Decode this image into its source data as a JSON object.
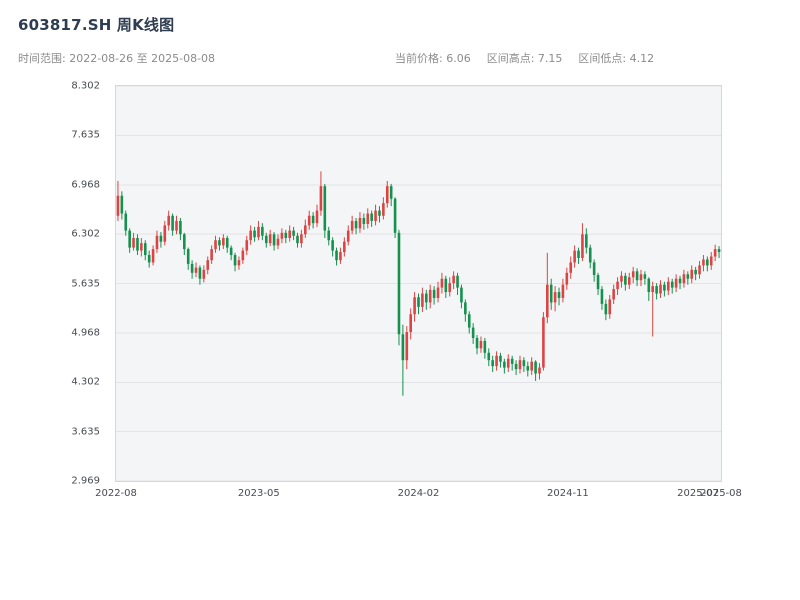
{
  "header": {
    "title": "603817.SH 周K线图",
    "time_range": "时间范围: 2022-08-26 至 2025-08-08",
    "stats": {
      "current_price": "当前价格: 6.06",
      "range_high": "区间高点: 7.15",
      "range_low": "区间低点: 4.12"
    }
  },
  "chart_data": {
    "type": "candlestick",
    "title": "603817.SH 周K线图",
    "symbol": "603817.SH",
    "period": "weekly",
    "date_range": [
      "2022-08-26",
      "2025-08-08"
    ],
    "current_price": 6.06,
    "range_high": 7.15,
    "range_low": 4.12,
    "ylim": [
      2.969,
      8.302
    ],
    "y_ticks": [
      8.302,
      7.635,
      6.968,
      6.302,
      5.635,
      4.968,
      4.302,
      3.635,
      2.969
    ],
    "x_ticks": [
      {
        "label": "2022-08",
        "pos": 0.0
      },
      {
        "label": "2023-05",
        "pos": 0.236
      },
      {
        "label": "2024-02",
        "pos": 0.5
      },
      {
        "label": "2024-11",
        "pos": 0.747
      },
      {
        "label": "2025-07",
        "pos": 0.962
      },
      {
        "label": "2025-08",
        "pos": 1.0
      }
    ],
    "up_color": "#dc4444",
    "down_color": "#14914e",
    "grid_color": "#e3e4e7",
    "legend": "none",
    "grid": "horizontal",
    "columns": [
      "date",
      "open",
      "high",
      "low",
      "close"
    ],
    "candles": [
      [
        "2022-08-26",
        6.55,
        7.02,
        6.48,
        6.82
      ],
      [
        "2022-09-02",
        6.82,
        6.88,
        6.5,
        6.58
      ],
      [
        "2022-09-09",
        6.58,
        6.62,
        6.28,
        6.35
      ],
      [
        "2022-09-16",
        6.35,
        6.38,
        6.05,
        6.12
      ],
      [
        "2022-09-23",
        6.12,
        6.32,
        6.08,
        6.25
      ],
      [
        "2022-09-30",
        6.25,
        6.3,
        6.02,
        6.08
      ],
      [
        "2022-10-07",
        6.08,
        6.25,
        6.0,
        6.18
      ],
      [
        "2022-10-14",
        6.18,
        6.22,
        5.95,
        6.02
      ],
      [
        "2022-10-21",
        6.02,
        6.08,
        5.85,
        5.92
      ],
      [
        "2022-10-28",
        5.92,
        6.15,
        5.88,
        6.1
      ],
      [
        "2022-11-04",
        6.1,
        6.35,
        6.05,
        6.28
      ],
      [
        "2022-11-11",
        6.28,
        6.33,
        6.12,
        6.2
      ],
      [
        "2022-11-18",
        6.2,
        6.48,
        6.15,
        6.42
      ],
      [
        "2022-11-25",
        6.42,
        6.62,
        6.35,
        6.55
      ],
      [
        "2022-12-02",
        6.55,
        6.58,
        6.28,
        6.35
      ],
      [
        "2022-12-09",
        6.35,
        6.55,
        6.3,
        6.48
      ],
      [
        "2022-12-16",
        6.48,
        6.52,
        6.22,
        6.3
      ],
      [
        "2022-12-23",
        6.3,
        6.32,
        6.02,
        6.1
      ],
      [
        "2022-12-30",
        6.1,
        6.12,
        5.82,
        5.9
      ],
      [
        "2023-01-06",
        5.9,
        5.95,
        5.7,
        5.78
      ],
      [
        "2023-01-13",
        5.78,
        5.92,
        5.72,
        5.85
      ],
      [
        "2023-01-20",
        5.85,
        5.88,
        5.62,
        5.7
      ],
      [
        "2023-01-27",
        5.7,
        5.88,
        5.65,
        5.82
      ],
      [
        "2023-02-03",
        5.82,
        6.0,
        5.76,
        5.95
      ],
      [
        "2023-02-10",
        5.95,
        6.15,
        5.9,
        6.1
      ],
      [
        "2023-02-17",
        6.1,
        6.28,
        6.05,
        6.22
      ],
      [
        "2023-02-24",
        6.22,
        6.26,
        6.08,
        6.15
      ],
      [
        "2023-03-03",
        6.15,
        6.3,
        6.1,
        6.25
      ],
      [
        "2023-03-10",
        6.25,
        6.28,
        6.05,
        6.12
      ],
      [
        "2023-03-17",
        6.12,
        6.15,
        5.95,
        6.02
      ],
      [
        "2023-03-24",
        6.02,
        6.05,
        5.8,
        5.88
      ],
      [
        "2023-03-31",
        5.88,
        6.0,
        5.82,
        5.95
      ],
      [
        "2023-04-07",
        5.95,
        6.12,
        5.9,
        6.08
      ],
      [
        "2023-04-14",
        6.08,
        6.28,
        6.02,
        6.22
      ],
      [
        "2023-04-21",
        6.22,
        6.42,
        6.16,
        6.35
      ],
      [
        "2023-04-28",
        6.35,
        6.4,
        6.2,
        6.26
      ],
      [
        "2023-05-05",
        6.26,
        6.48,
        6.22,
        6.4
      ],
      [
        "2023-05-12",
        6.4,
        6.45,
        6.22,
        6.28
      ],
      [
        "2023-05-19",
        6.28,
        6.32,
        6.12,
        6.18
      ],
      [
        "2023-05-26",
        6.18,
        6.36,
        6.14,
        6.3
      ],
      [
        "2023-06-02",
        6.3,
        6.33,
        6.08,
        6.15
      ],
      [
        "2023-06-09",
        6.15,
        6.3,
        6.1,
        6.24
      ],
      [
        "2023-06-16",
        6.24,
        6.38,
        6.18,
        6.32
      ],
      [
        "2023-06-23",
        6.32,
        6.36,
        6.18,
        6.25
      ],
      [
        "2023-06-30",
        6.25,
        6.42,
        6.2,
        6.35
      ],
      [
        "2023-07-07",
        6.35,
        6.4,
        6.22,
        6.28
      ],
      [
        "2023-07-14",
        6.28,
        6.32,
        6.12,
        6.18
      ],
      [
        "2023-07-21",
        6.18,
        6.36,
        6.12,
        6.3
      ],
      [
        "2023-07-28",
        6.3,
        6.5,
        6.25,
        6.42
      ],
      [
        "2023-08-04",
        6.42,
        6.62,
        6.36,
        6.55
      ],
      [
        "2023-08-11",
        6.55,
        6.6,
        6.38,
        6.45
      ],
      [
        "2023-08-18",
        6.45,
        6.7,
        6.4,
        6.62
      ],
      [
        "2023-08-25",
        6.62,
        7.15,
        6.55,
        6.95
      ],
      [
        "2023-09-01",
        6.95,
        6.98,
        6.25,
        6.35
      ],
      [
        "2023-09-08",
        6.35,
        6.4,
        6.15,
        6.22
      ],
      [
        "2023-09-15",
        6.22,
        6.26,
        6.0,
        6.08
      ],
      [
        "2023-09-22",
        6.08,
        6.12,
        5.88,
        5.95
      ],
      [
        "2023-09-29",
        5.95,
        6.12,
        5.9,
        6.06
      ],
      [
        "2023-10-06",
        6.06,
        6.26,
        6.0,
        6.2
      ],
      [
        "2023-10-13",
        6.2,
        6.42,
        6.15,
        6.35
      ],
      [
        "2023-10-20",
        6.35,
        6.55,
        6.3,
        6.48
      ],
      [
        "2023-10-27",
        6.48,
        6.52,
        6.3,
        6.38
      ],
      [
        "2023-11-03",
        6.38,
        6.6,
        6.32,
        6.52
      ],
      [
        "2023-11-10",
        6.52,
        6.58,
        6.36,
        6.44
      ],
      [
        "2023-11-17",
        6.44,
        6.65,
        6.38,
        6.58
      ],
      [
        "2023-11-24",
        6.58,
        6.62,
        6.4,
        6.48
      ],
      [
        "2023-12-01",
        6.48,
        6.7,
        6.42,
        6.62
      ],
      [
        "2023-12-08",
        6.62,
        6.68,
        6.46,
        6.55
      ],
      [
        "2023-12-15",
        6.55,
        6.8,
        6.5,
        6.72
      ],
      [
        "2023-12-22",
        6.72,
        7.02,
        6.66,
        6.95
      ],
      [
        "2023-12-29",
        6.95,
        6.98,
        6.68,
        6.78
      ],
      [
        "2024-01-05",
        6.78,
        6.8,
        6.25,
        6.32
      ],
      [
        "2024-01-12",
        6.32,
        6.36,
        4.8,
        4.95
      ],
      [
        "2024-01-19",
        4.95,
        5.08,
        4.12,
        4.6
      ],
      [
        "2024-01-26",
        4.6,
        5.06,
        4.48,
        4.98
      ],
      [
        "2024-02-02",
        4.98,
        5.3,
        4.88,
        5.22
      ],
      [
        "2024-02-09",
        5.22,
        5.52,
        5.12,
        5.45
      ],
      [
        "2024-02-16",
        5.45,
        5.5,
        5.22,
        5.32
      ],
      [
        "2024-02-23",
        5.32,
        5.58,
        5.25,
        5.5
      ],
      [
        "2024-03-01",
        5.5,
        5.55,
        5.28,
        5.38
      ],
      [
        "2024-03-08",
        5.38,
        5.62,
        5.3,
        5.55
      ],
      [
        "2024-03-15",
        5.55,
        5.6,
        5.35,
        5.44
      ],
      [
        "2024-03-22",
        5.44,
        5.66,
        5.38,
        5.58
      ],
      [
        "2024-03-29",
        5.58,
        5.78,
        5.5,
        5.7
      ],
      [
        "2024-04-05",
        5.7,
        5.74,
        5.44,
        5.52
      ],
      [
        "2024-04-12",
        5.52,
        5.72,
        5.46,
        5.64
      ],
      [
        "2024-04-19",
        5.64,
        5.8,
        5.56,
        5.74
      ],
      [
        "2024-04-26",
        5.74,
        5.78,
        5.48,
        5.58
      ],
      [
        "2024-05-03",
        5.58,
        5.62,
        5.3,
        5.38
      ],
      [
        "2024-05-10",
        5.38,
        5.42,
        5.12,
        5.22
      ],
      [
        "2024-05-17",
        5.22,
        5.26,
        4.96,
        5.04
      ],
      [
        "2024-05-24",
        5.04,
        5.1,
        4.82,
        4.9
      ],
      [
        "2024-05-31",
        4.9,
        4.94,
        4.68,
        4.76
      ],
      [
        "2024-06-07",
        4.76,
        4.92,
        4.7,
        4.86
      ],
      [
        "2024-06-14",
        4.86,
        4.9,
        4.62,
        4.7
      ],
      [
        "2024-06-21",
        4.7,
        4.76,
        4.52,
        4.6
      ],
      [
        "2024-06-28",
        4.6,
        4.66,
        4.44,
        4.52
      ],
      [
        "2024-07-05",
        4.52,
        4.72,
        4.46,
        4.66
      ],
      [
        "2024-07-12",
        4.66,
        4.7,
        4.5,
        4.58
      ],
      [
        "2024-07-19",
        4.58,
        4.62,
        4.42,
        4.5
      ],
      [
        "2024-07-26",
        4.5,
        4.68,
        4.44,
        4.62
      ],
      [
        "2024-08-02",
        4.62,
        4.66,
        4.46,
        4.55
      ],
      [
        "2024-08-09",
        4.55,
        4.6,
        4.4,
        4.48
      ],
      [
        "2024-08-16",
        4.48,
        4.66,
        4.42,
        4.6
      ],
      [
        "2024-08-23",
        4.6,
        4.64,
        4.44,
        4.52
      ],
      [
        "2024-08-30",
        4.52,
        4.58,
        4.38,
        4.46
      ],
      [
        "2024-09-06",
        4.46,
        4.64,
        4.4,
        4.58
      ],
      [
        "2024-09-13",
        4.58,
        4.6,
        4.32,
        4.42
      ],
      [
        "2024-09-20",
        4.42,
        4.56,
        4.34,
        4.5
      ],
      [
        "2024-09-27",
        4.5,
        5.25,
        4.46,
        5.18
      ],
      [
        "2024-10-04",
        5.18,
        6.05,
        5.1,
        5.62
      ],
      [
        "2024-10-11",
        5.62,
        5.7,
        5.28,
        5.38
      ],
      [
        "2024-10-18",
        5.38,
        5.6,
        5.26,
        5.52
      ],
      [
        "2024-10-25",
        5.52,
        5.58,
        5.34,
        5.44
      ],
      [
        "2024-11-01",
        5.44,
        5.7,
        5.38,
        5.62
      ],
      [
        "2024-11-08",
        5.62,
        5.85,
        5.55,
        5.78
      ],
      [
        "2024-11-15",
        5.78,
        6.0,
        5.7,
        5.92
      ],
      [
        "2024-11-22",
        5.92,
        6.15,
        5.85,
        6.08
      ],
      [
        "2024-11-29",
        6.08,
        6.12,
        5.9,
        5.98
      ],
      [
        "2024-12-06",
        5.98,
        6.45,
        5.94,
        6.3
      ],
      [
        "2024-12-13",
        6.3,
        6.38,
        6.04,
        6.12
      ],
      [
        "2024-12-20",
        6.12,
        6.16,
        5.84,
        5.92
      ],
      [
        "2024-12-27",
        5.92,
        5.96,
        5.66,
        5.75
      ],
      [
        "2025-01-03",
        5.75,
        5.78,
        5.48,
        5.56
      ],
      [
        "2025-01-10",
        5.56,
        5.6,
        5.28,
        5.36
      ],
      [
        "2025-01-17",
        5.36,
        5.42,
        5.14,
        5.22
      ],
      [
        "2025-01-24",
        5.22,
        5.48,
        5.16,
        5.42
      ],
      [
        "2025-01-31",
        5.42,
        5.62,
        5.36,
        5.56
      ],
      [
        "2025-02-07",
        5.56,
        5.72,
        5.48,
        5.66
      ],
      [
        "2025-02-14",
        5.66,
        5.8,
        5.58,
        5.74
      ],
      [
        "2025-02-21",
        5.74,
        5.78,
        5.54,
        5.62
      ],
      [
        "2025-02-28",
        5.62,
        5.78,
        5.56,
        5.72
      ],
      [
        "2025-03-07",
        5.72,
        5.86,
        5.64,
        5.8
      ],
      [
        "2025-03-14",
        5.8,
        5.84,
        5.6,
        5.68
      ],
      [
        "2025-03-21",
        5.68,
        5.82,
        5.6,
        5.76
      ],
      [
        "2025-03-28",
        5.76,
        5.8,
        5.62,
        5.7
      ],
      [
        "2025-04-04",
        5.7,
        5.72,
        5.4,
        5.52
      ],
      [
        "2025-04-11",
        5.52,
        5.66,
        4.92,
        5.6
      ],
      [
        "2025-04-18",
        5.6,
        5.64,
        5.42,
        5.5
      ],
      [
        "2025-04-25",
        5.5,
        5.68,
        5.44,
        5.62
      ],
      [
        "2025-05-02",
        5.62,
        5.66,
        5.46,
        5.54
      ],
      [
        "2025-05-09",
        5.54,
        5.72,
        5.48,
        5.66
      ],
      [
        "2025-05-16",
        5.66,
        5.7,
        5.5,
        5.58
      ],
      [
        "2025-05-23",
        5.58,
        5.76,
        5.52,
        5.7
      ],
      [
        "2025-05-30",
        5.7,
        5.74,
        5.56,
        5.64
      ],
      [
        "2025-06-06",
        5.64,
        5.82,
        5.58,
        5.76
      ],
      [
        "2025-06-13",
        5.76,
        5.8,
        5.62,
        5.7
      ],
      [
        "2025-06-20",
        5.7,
        5.88,
        5.64,
        5.82
      ],
      [
        "2025-06-27",
        5.82,
        5.86,
        5.68,
        5.76
      ],
      [
        "2025-07-04",
        5.76,
        5.94,
        5.7,
        5.88
      ],
      [
        "2025-07-11",
        5.88,
        6.02,
        5.8,
        5.96
      ],
      [
        "2025-07-18",
        5.96,
        6.0,
        5.8,
        5.88
      ],
      [
        "2025-07-25",
        5.88,
        6.06,
        5.82,
        6.0
      ],
      [
        "2025-08-01",
        6.0,
        6.16,
        5.94,
        6.1
      ],
      [
        "2025-08-08",
        6.1,
        6.14,
        5.98,
        6.06
      ]
    ]
  }
}
